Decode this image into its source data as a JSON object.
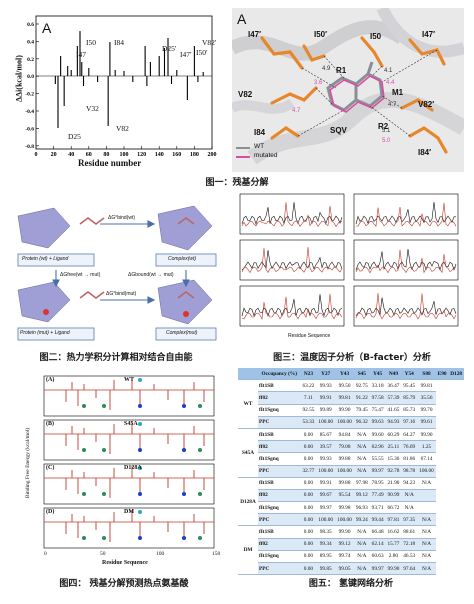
{
  "fig1": {
    "chart": {
      "panel": "A",
      "ylabel": "ΔΔi(kcal/mol)",
      "xlabel": "Residue number",
      "xticks": [
        "0",
        "20",
        "40",
        "60",
        "80",
        "100",
        "120",
        "140",
        "160",
        "180",
        "200"
      ],
      "yticks": [
        "0.6",
        "0.4",
        "0.2",
        "0.0",
        "-0.2",
        "-0.4",
        "-0.6",
        "-0.8"
      ],
      "labels": [
        "I47",
        "I50",
        "I84",
        "D25′",
        "I47′",
        "I50′",
        "V82′",
        "V32",
        "D25",
        "V82"
      ]
    },
    "structure": {
      "panel": "A",
      "residues": [
        "I47′",
        "I50′",
        "I50",
        "I47′",
        "V82",
        "R1",
        "M1",
        "V82′",
        "I84",
        "SQV",
        "R2",
        "I84′"
      ],
      "distances": [
        "3.6",
        "4.9",
        "4.1",
        "4.4",
        "4.7",
        "4.7",
        "5.1",
        "5.0"
      ],
      "legend": [
        "WT",
        "mutated"
      ]
    },
    "caption": "图一：残基分解"
  },
  "fig2": {
    "labels": {
      "top_left": "Protein (wt) + Ligand",
      "top_right": "Complex(wt)",
      "bottom_left": "Protein (mut) + Ligand",
      "bottom_right": "Complex(mut)",
      "arrow_top": "ΔG°bind(wt)",
      "arrow_bottom": "ΔG°bind(mut)",
      "arrow_left": "ΔGfree(wt → mut)",
      "arrow_right": "ΔGbound(wt → mut)"
    },
    "caption": "图二：热力学积分计算相对结合自由能"
  },
  "fig3": {
    "xlabel": "Residue Sequence",
    "caption": "图三：温度因子分析（B-facter）分析"
  },
  "fig4": {
    "panels": [
      {
        "letter": "(A)",
        "title": "WT"
      },
      {
        "letter": "(B)",
        "title": "S45A"
      },
      {
        "letter": "(C)",
        "title": "D128A"
      },
      {
        "letter": "(D)",
        "title": "DM"
      }
    ],
    "ylabel": "Binding Free Energy (kcal/mol)",
    "xlabel": "Residue Sequence",
    "xticks": [
      "0",
      "50",
      "100",
      "150"
    ],
    "caption": "图四：  残基分解预测热点氨基酸"
  },
  "fig5": {
    "headers": [
      "Occupancy (%)",
      "N23",
      "Y27",
      "Y43",
      "S45",
      "Y45",
      "N49",
      "Y54",
      "S88",
      "E90",
      "D128"
    ],
    "groups": [
      {
        "name": "WT",
        "rows": [
          {
            "m": "fIt1SB",
            "v": [
              "63.22",
              "99.93",
              "99.50",
              "92.75",
              "33.18",
              "36.47",
              "95.45",
              "99.81"
            ]
          },
          {
            "m": "ff02",
            "v": [
              "7.11",
              "99.91",
              "99.81",
              "91.22",
              "97.58",
              "57.39",
              "85.79",
              "35.56"
            ]
          },
          {
            "m": "fIt1Sgnq",
            "v": [
              "92.55",
              "99.89",
              "99.90",
              "79.45",
              "75.47",
              "41.65",
              "85.73",
              "99.70"
            ]
          },
          {
            "m": "PPC",
            "v": [
              "53.33",
              "100.00",
              "100.00",
              "96.32",
              "99.63",
              "94.93",
              "97.16",
              "99.61"
            ]
          }
        ]
      },
      {
        "name": "S45A",
        "rows": [
          {
            "m": "fIt1SB",
            "v": [
              "0.00",
              "85.67",
              "94.84",
              "N/A",
              "99.60",
              "60.29",
              "64.27",
              "99.90"
            ]
          },
          {
            "m": "ff02",
            "v": [
              "0.00",
              "39.57",
              "79.08",
              "N/A",
              "62.96",
              "25.11",
              "76.69",
              "1.25"
            ]
          },
          {
            "m": "fIt1Sgnq",
            "v": [
              "0.00",
              "99.93",
              "99.88",
              "N/A",
              "55.55",
              "15.36",
              "81.86",
              "67.14"
            ]
          },
          {
            "m": "PPC",
            "v": [
              "32.77",
              "100.00",
              "100.00",
              "N/A",
              "99.97",
              "92.78",
              "98.78",
              "100.00"
            ]
          }
        ]
      },
      {
        "name": "D128A",
        "rows": [
          {
            "m": "fIt1SB",
            "v": [
              "0.00",
              "99.91",
              "99.88",
              "97.98",
              "78.95",
              "21.90",
              "94.23",
              "N/A"
            ]
          },
          {
            "m": "ff02",
            "v": [
              "0.00",
              "99.67",
              "95.54",
              "99.12",
              "77.49",
              "90.99",
              "N/A",
              ""
            ]
          },
          {
            "m": "fIt1Sgnq",
            "v": [
              "0.00",
              "99.97",
              "99.98",
              "96.93",
              "93.71",
              "66.72",
              "N/A",
              ""
            ]
          },
          {
            "m": "PPC",
            "v": [
              "0.00",
              "100.00",
              "100.00",
              "99.24",
              "99.44",
              "97.81",
              "97.35",
              "N/A"
            ]
          }
        ]
      },
      {
        "name": "DM",
        "rows": [
          {
            "m": "fIt1SB",
            "v": [
              "0.00",
              "98.35",
              "99.90",
              "N/A",
              "66.48",
              "16.62",
              "88.61",
              "N/A"
            ]
          },
          {
            "m": "ff02",
            "v": [
              "0.00",
              "99.34",
              "99.12",
              "N/A",
              "62.14",
              "15.77",
              "72.18",
              "N/A"
            ]
          },
          {
            "m": "fIt1Sgnq",
            "v": [
              "0.00",
              "89.95",
              "99.74",
              "N/A",
              "60.63",
              "2.80",
              "46.53",
              "N/A"
            ]
          },
          {
            "m": "PPC",
            "v": [
              "0.00",
              "99.85",
              "99.05",
              "N/A",
              "99.97",
              "99.90",
              "97.64",
              "N/A"
            ]
          }
        ]
      }
    ],
    "caption": "图五：  氢键网络分析"
  }
}
